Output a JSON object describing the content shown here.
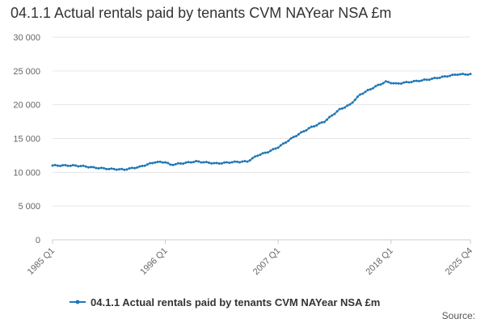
{
  "chart_data": {
    "type": "line",
    "title": "04.1.1 Actual rentals paid by tenants CVM NAYear NSA £m",
    "xlabel": "",
    "ylabel": "",
    "x_start": "1985 Q1",
    "x_end": "2025 Q4",
    "x_tick_labels": [
      "1985 Q1",
      "1996 Q1",
      "2007 Q1",
      "2018 Q1",
      "2025 Q4"
    ],
    "x_tick_index": [
      0,
      44,
      88,
      132,
      163
    ],
    "y_tick_labels": [
      "0",
      "5 000",
      "10 000",
      "15 000",
      "20 000",
      "25 000",
      "30 000"
    ],
    "ylim": [
      0,
      30000
    ],
    "series_anchors": [
      {
        "i": 0,
        "v": 11000
      },
      {
        "i": 8,
        "v": 11000
      },
      {
        "i": 12,
        "v": 10900
      },
      {
        "i": 16,
        "v": 10700
      },
      {
        "i": 22,
        "v": 10500
      },
      {
        "i": 28,
        "v": 10400
      },
      {
        "i": 34,
        "v": 10800
      },
      {
        "i": 40,
        "v": 11500
      },
      {
        "i": 44,
        "v": 11500
      },
      {
        "i": 46,
        "v": 11100
      },
      {
        "i": 52,
        "v": 11400
      },
      {
        "i": 56,
        "v": 11600
      },
      {
        "i": 64,
        "v": 11300
      },
      {
        "i": 70,
        "v": 11500
      },
      {
        "i": 76,
        "v": 11600
      },
      {
        "i": 80,
        "v": 12500
      },
      {
        "i": 84,
        "v": 13000
      },
      {
        "i": 88,
        "v": 13700
      },
      {
        "i": 94,
        "v": 15200
      },
      {
        "i": 100,
        "v": 16500
      },
      {
        "i": 106,
        "v": 17500
      },
      {
        "i": 112,
        "v": 19300
      },
      {
        "i": 116,
        "v": 20000
      },
      {
        "i": 120,
        "v": 21500
      },
      {
        "i": 126,
        "v": 22700
      },
      {
        "i": 130,
        "v": 23400
      },
      {
        "i": 134,
        "v": 23100
      },
      {
        "i": 140,
        "v": 23400
      },
      {
        "i": 146,
        "v": 23700
      },
      {
        "i": 152,
        "v": 24100
      },
      {
        "i": 158,
        "v": 24500
      },
      {
        "i": 163,
        "v": 24500
      }
    ],
    "series": [
      {
        "name": "04.1.1 Actual rentals paid by tenants CVM NAYear NSA £m",
        "color": "#1f77b4"
      }
    ],
    "legend_position": "bottom-center",
    "grid": true
  },
  "source_label": "Source:",
  "colors": {
    "series": "#1f77b4",
    "grid": "#e6e6e6",
    "axis": "#cccccc",
    "tick_text": "#666666"
  }
}
